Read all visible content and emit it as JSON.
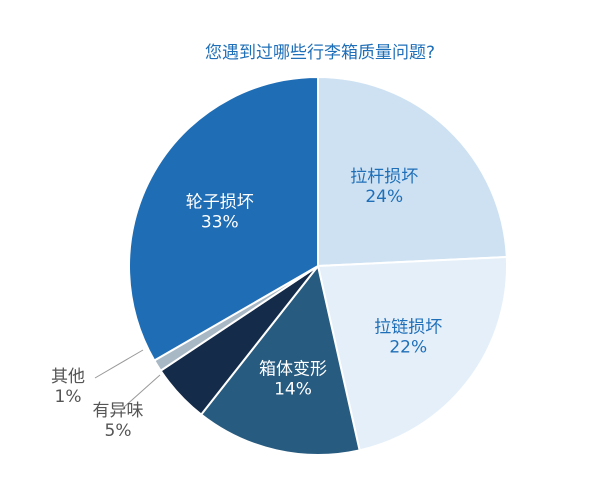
{
  "chart_data": {
    "type": "pie",
    "title": "您遇到过哪些行李箱质量问题?",
    "slices": [
      {
        "label": "拉杆损坏",
        "value": 24,
        "value_label": "24%",
        "color": "#cde1f2",
        "text_color": "#1f6fb8",
        "label_position": "inside"
      },
      {
        "label": "拉链损坏",
        "value": 22,
        "value_label": "22%",
        "color": "#e4eff9",
        "text_color": "#1f6fb8",
        "label_position": "inside"
      },
      {
        "label": "箱体变形",
        "value": 14,
        "value_label": "14%",
        "color": "#285b80",
        "text_color": "#ffffff",
        "label_position": "inside"
      },
      {
        "label": "有异味",
        "value": 5,
        "value_label": "5%",
        "color": "#142b4a",
        "text_color": "#555555",
        "label_position": "outside"
      },
      {
        "label": "其他",
        "value": 1,
        "value_label": "1%",
        "color": "#a8b8c4",
        "text_color": "#555555",
        "label_position": "outside"
      },
      {
        "label": "轮子损坏",
        "value": 33,
        "value_label": "33%",
        "color": "#1f6db5",
        "text_color": "#ffffff",
        "label_position": "inside"
      }
    ],
    "start_angle": "12 o'clock",
    "direction": "clockwise"
  }
}
